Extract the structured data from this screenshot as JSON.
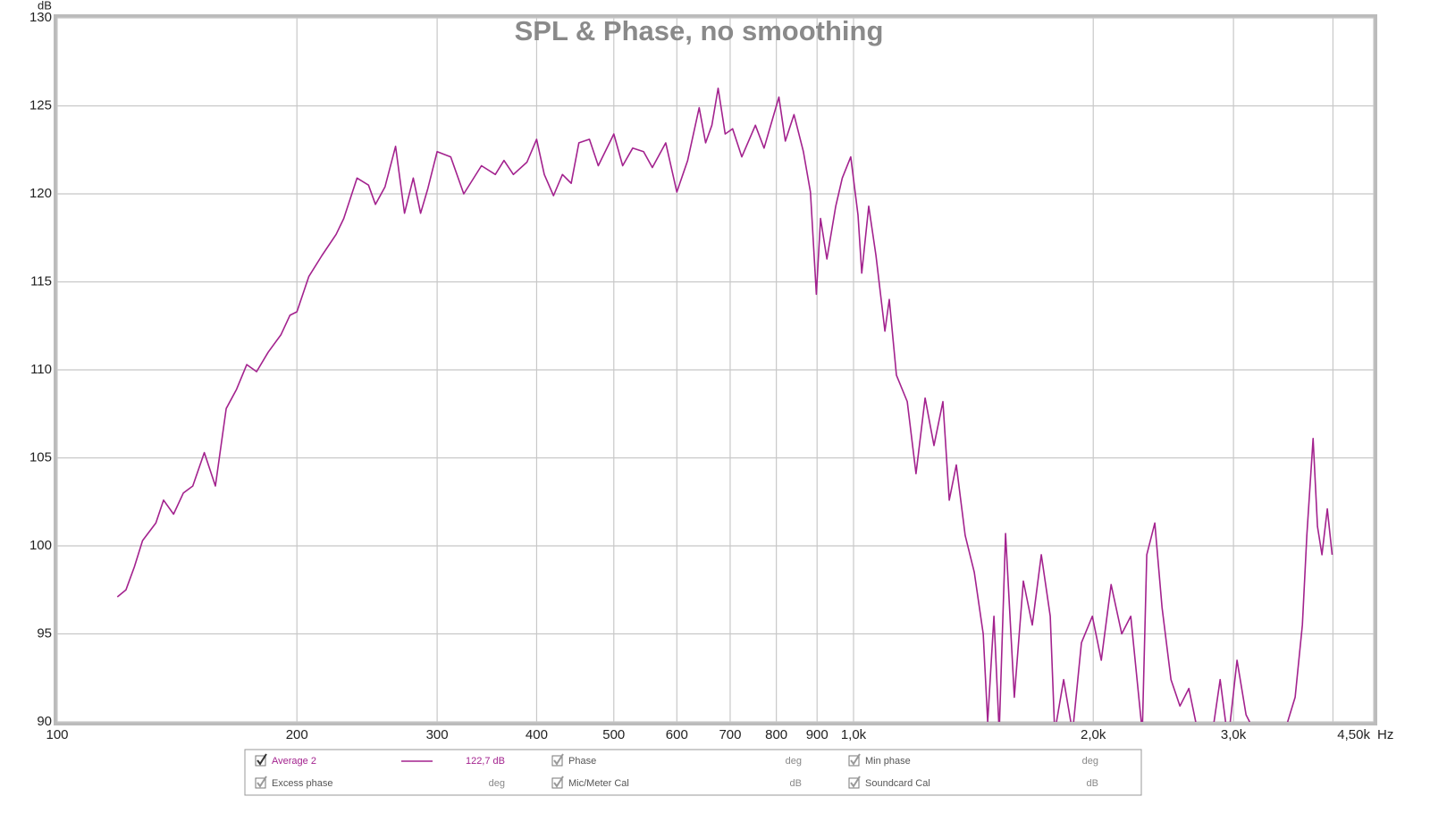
{
  "chart_data": {
    "type": "line",
    "title": "SPL & Phase, no smoothing",
    "xlabel": "Hz",
    "ylabel": "dB",
    "xscale": "log",
    "grid": true,
    "xlim": [
      100,
      4500
    ],
    "ylim": [
      90,
      130
    ],
    "xticks": [
      100,
      200,
      300,
      400,
      500,
      600,
      700,
      800,
      900,
      {
        "value": 1000,
        "label": "1,0k"
      },
      {
        "value": 2000,
        "label": "2,0k"
      },
      {
        "value": 3000,
        "label": "3,0k"
      },
      {
        "value": 4000,
        "label": null
      },
      {
        "value": 4500,
        "label": "4,50k"
      }
    ],
    "yticks": [
      90,
      95,
      100,
      105,
      110,
      115,
      120,
      125,
      130
    ],
    "x": [
      119,
      122,
      125,
      128,
      133,
      136,
      140,
      144,
      148,
      153,
      158,
      163,
      168,
      173,
      178,
      184,
      191,
      196,
      200,
      207,
      215,
      224,
      229,
      238,
      246,
      251,
      258,
      266,
      273,
      280,
      286,
      292,
      300,
      312,
      324,
      341,
      355,
      364,
      374,
      389,
      400,
      409,
      420,
      431,
      442,
      452,
      466,
      478,
      500,
      513,
      528,
      545,
      559,
      581,
      600,
      619,
      640,
      652,
      664,
      676,
      690,
      705,
      724,
      753,
      772,
      806,
      821,
      842,
      865,
      883,
      898,
      909,
      926,
      950,
      968,
      992,
      1013,
      1024,
      1045,
      1067,
      1095,
      1109,
      1132,
      1168,
      1198,
      1230,
      1262,
      1295,
      1319,
      1346,
      1381,
      1418,
      1455,
      1474,
      1501,
      1524,
      1552,
      1592,
      1634,
      1677,
      1721,
      1766,
      1789,
      1836,
      1884,
      1933,
      1995,
      2047,
      2106,
      2172,
      2229,
      2305,
      2335,
      2390,
      2440,
      2504,
      2570,
      2637,
      2707,
      2813,
      2887,
      2954,
      3031,
      3111,
      3234,
      3449,
      3586,
      3661,
      3709,
      3777,
      3825,
      3875,
      3935,
      3990
    ],
    "series": [
      {
        "name": "Average 2",
        "color": "#a3228e",
        "readout": "122,7 dB",
        "values": [
          97.1,
          97.5,
          98.8,
          100.3,
          101.3,
          102.6,
          101.8,
          103.0,
          103.4,
          105.3,
          103.4,
          107.8,
          108.9,
          110.3,
          109.9,
          111.0,
          112.0,
          113.1,
          113.3,
          115.3,
          116.5,
          117.7,
          118.6,
          120.9,
          120.5,
          119.4,
          120.4,
          122.7,
          118.9,
          120.9,
          118.9,
          120.3,
          122.4,
          122.1,
          120.0,
          121.6,
          121.1,
          121.9,
          121.1,
          121.8,
          123.1,
          121.1,
          119.9,
          121.1,
          120.6,
          122.9,
          123.1,
          121.6,
          123.4,
          121.6,
          122.6,
          122.4,
          121.5,
          122.9,
          120.1,
          121.9,
          124.9,
          122.9,
          123.9,
          126.0,
          123.4,
          123.7,
          122.1,
          123.9,
          122.6,
          125.5,
          123.0,
          124.5,
          122.4,
          120.1,
          114.3,
          118.6,
          116.3,
          119.3,
          120.9,
          122.1,
          118.8,
          115.5,
          119.3,
          116.5,
          112.2,
          114.0,
          109.7,
          108.2,
          104.1,
          108.4,
          105.7,
          108.2,
          102.6,
          104.6,
          100.6,
          98.5,
          95.0,
          90.0,
          96.0,
          89.4,
          100.7,
          91.4,
          98.0,
          95.5,
          99.5,
          96.0,
          89.4,
          92.4,
          89.4,
          94.5,
          96.0,
          93.5,
          97.8,
          95.0,
          96.0,
          89.4,
          99.5,
          101.3,
          96.5,
          92.4,
          90.9,
          91.9,
          89.4,
          88.9,
          92.4,
          88.9,
          93.5,
          90.4,
          88.9,
          88.9,
          91.4,
          95.5,
          100.6,
          106.1,
          101.1,
          99.5,
          102.1,
          99.5
        ]
      }
    ]
  },
  "legend_panel": {
    "items": [
      {
        "name": "Phase",
        "unit": "deg"
      },
      {
        "name": "Min phase",
        "unit": "deg"
      },
      {
        "name": "Excess phase",
        "unit": "deg"
      },
      {
        "name": "Mic/Meter Cal",
        "unit": "dB"
      },
      {
        "name": "Soundcard Cal",
        "unit": "dB"
      }
    ]
  }
}
